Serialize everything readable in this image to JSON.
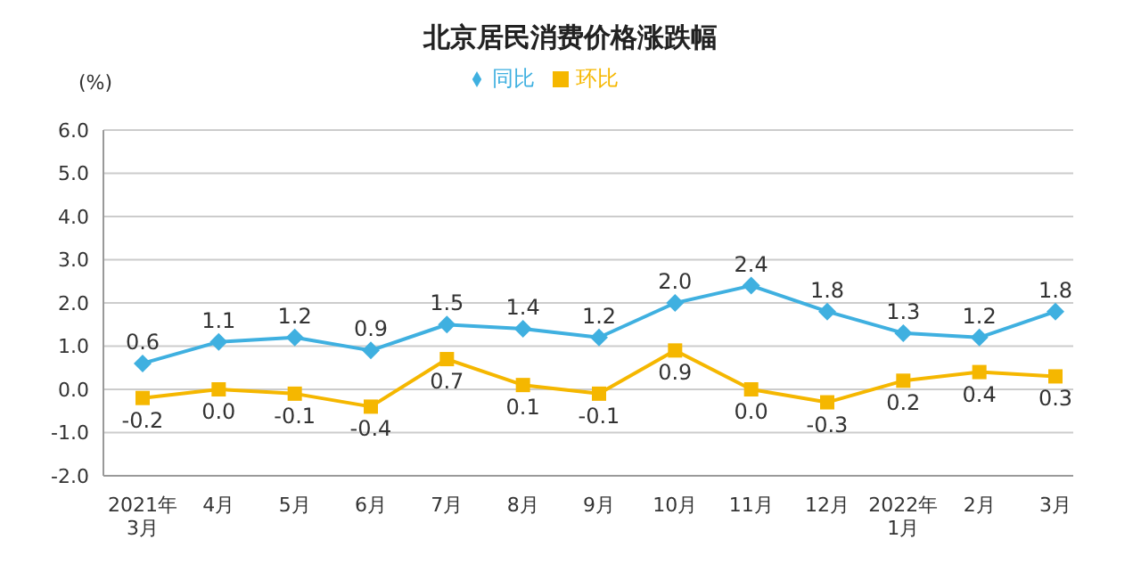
{
  "chart_data": {
    "type": "line",
    "title": "北京居民消费价格涨跌幅",
    "ylabel": "(%)",
    "categories": [
      "2021年\n3月",
      "4月",
      "5月",
      "6月",
      "7月",
      "8月",
      "9月",
      "10月",
      "11月",
      "12月",
      "2022年\n1月",
      "2月",
      "3月"
    ],
    "series": [
      {
        "name": "环比",
        "color": "#f5b700",
        "marker": "square",
        "values": [
          -0.2,
          0.0,
          -0.1,
          -0.4,
          0.7,
          0.1,
          -0.1,
          0.9,
          0.0,
          -0.3,
          0.2,
          0.4,
          0.3
        ],
        "value_labels": [
          "-0.2",
          "0.0",
          "-0.1",
          "-0.4",
          "0.7",
          "0.1",
          "-0.1",
          "0.9",
          "0.0",
          "-0.3",
          "0.2",
          "0.4",
          "0.3"
        ]
      },
      {
        "name": "同比",
        "color": "#3fb0e0",
        "marker": "diamond",
        "values": [
          0.6,
          1.1,
          1.2,
          0.9,
          1.5,
          1.4,
          1.2,
          2.0,
          2.4,
          1.8,
          1.3,
          1.2,
          1.8
        ],
        "value_labels": [
          "0.6",
          "1.1",
          "1.2",
          "0.9",
          "1.5",
          "1.4",
          "1.2",
          "2.0",
          "2.4",
          "1.8",
          "1.3",
          "1.2",
          "1.8"
        ]
      }
    ],
    "ylim": [
      -2,
      6
    ],
    "yticks": [
      {
        "value": -2,
        "label": "-2.0"
      },
      {
        "value": -1,
        "label": "-1.0"
      },
      {
        "value": 0,
        "label": "0.0"
      },
      {
        "value": 1,
        "label": "1.0"
      },
      {
        "value": 2,
        "label": "2.0"
      },
      {
        "value": 3,
        "label": "3.0"
      },
      {
        "value": 4,
        "label": "4.0"
      },
      {
        "value": 5,
        "label": "5.0"
      },
      {
        "value": 6,
        "label": "6.0"
      }
    ],
    "grid": "y",
    "legend": "top",
    "line_style": "solid"
  }
}
